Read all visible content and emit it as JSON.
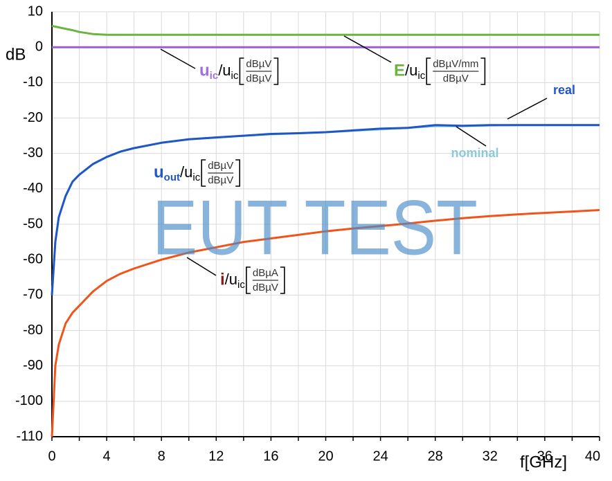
{
  "chart_data": {
    "type": "line",
    "ylabel": "dB",
    "xlabel": "f[GHz]",
    "watermark": "EUT TEST",
    "x": [
      0,
      0.25,
      0.5,
      1,
      1.5,
      2,
      3,
      4,
      5,
      6,
      8,
      10,
      12,
      14,
      16,
      18,
      20,
      22,
      24,
      26,
      28,
      30,
      32,
      34,
      36,
      38,
      40
    ],
    "xlim": [
      0,
      40
    ],
    "ylim": [
      -110,
      10
    ],
    "xticks": [
      0,
      4,
      8,
      12,
      16,
      20,
      24,
      28,
      32,
      36,
      40
    ],
    "xminorticks": [
      2,
      6,
      10,
      14,
      18,
      22,
      26,
      30,
      34,
      38
    ],
    "yticks": [
      10,
      0,
      -10,
      -20,
      -30,
      -40,
      -50,
      -60,
      -70,
      -80,
      -90,
      -100,
      -110
    ],
    "grid": true,
    "series": [
      {
        "color": "#9b5de0",
        "values": [
          0,
          0,
          0,
          0,
          0,
          0,
          0,
          0,
          0,
          0,
          0,
          0,
          0,
          0,
          0,
          0,
          0,
          0,
          0,
          0,
          0,
          0,
          0,
          0,
          0,
          0,
          0
        ]
      },
      {
        "color": "#6db33f",
        "values": [
          6,
          5.8,
          5.6,
          5.2,
          4.8,
          4.3,
          3.7,
          3.5,
          3.5,
          3.5,
          3.5,
          3.5,
          3.5,
          3.5,
          3.5,
          3.5,
          3.5,
          3.5,
          3.5,
          3.5,
          3.5,
          3.5,
          3.5,
          3.5,
          3.5,
          3.5,
          3.5
        ]
      },
      {
        "name": "nominal",
        "color": "#8cc9d8",
        "values": [
          -70,
          -55,
          -48,
          -42,
          -38,
          -36,
          -33,
          -31,
          -29.5,
          -28.5,
          -27,
          -26,
          -25.5,
          -25,
          -24.6,
          -24.3,
          -24,
          -23.6,
          -23.2,
          -22.8,
          -22.3,
          -22.3,
          -22.1,
          -22,
          -22,
          -22,
          -22
        ]
      },
      {
        "name": "real",
        "color": "#1f56c8",
        "values": [
          -70,
          -55,
          -48,
          -42,
          -38,
          -36,
          -33,
          -31,
          -29.5,
          -28.5,
          -27,
          -26,
          -25.5,
          -25,
          -24.5,
          -24.3,
          -24,
          -23.5,
          -23,
          -22.8,
          -22,
          -22.2,
          -22,
          -22,
          -22,
          -22,
          -22
        ]
      },
      {
        "color": "#f0541a",
        "values": [
          -110,
          -90,
          -84,
          -78,
          -75,
          -73,
          -69,
          -66,
          -64,
          -62.5,
          -60,
          -58,
          -56.5,
          -55,
          -54,
          -53,
          -52,
          -51.2,
          -50.5,
          -49.8,
          -49,
          -48.3,
          -47.7,
          -47.2,
          -46.8,
          -46.4,
          -46
        ]
      }
    ],
    "annotations": [
      {
        "symbol": "u",
        "symbol_sub": "ic",
        "color": "#a070e0",
        "ref": "/u",
        "ref_sub": "ic",
        "num": "dBµV",
        "den": "dBµV"
      },
      {
        "symbol": "E",
        "color": "#6db33f",
        "ref": "/u",
        "ref_sub": "ic",
        "num": "dBµV/mm",
        "den": "dBµV"
      },
      {
        "symbol": "u",
        "symbol_sub": "out",
        "color": "#1f56c8",
        "ref": "/u",
        "ref_sub": "ic",
        "num": "dBµV",
        "den": "dBµV"
      },
      {
        "symbol": "i",
        "color": "#8b1a1a",
        "ref": "/u",
        "ref_sub": "ic",
        "num": "dBµA",
        "den": "dBµV"
      }
    ]
  }
}
